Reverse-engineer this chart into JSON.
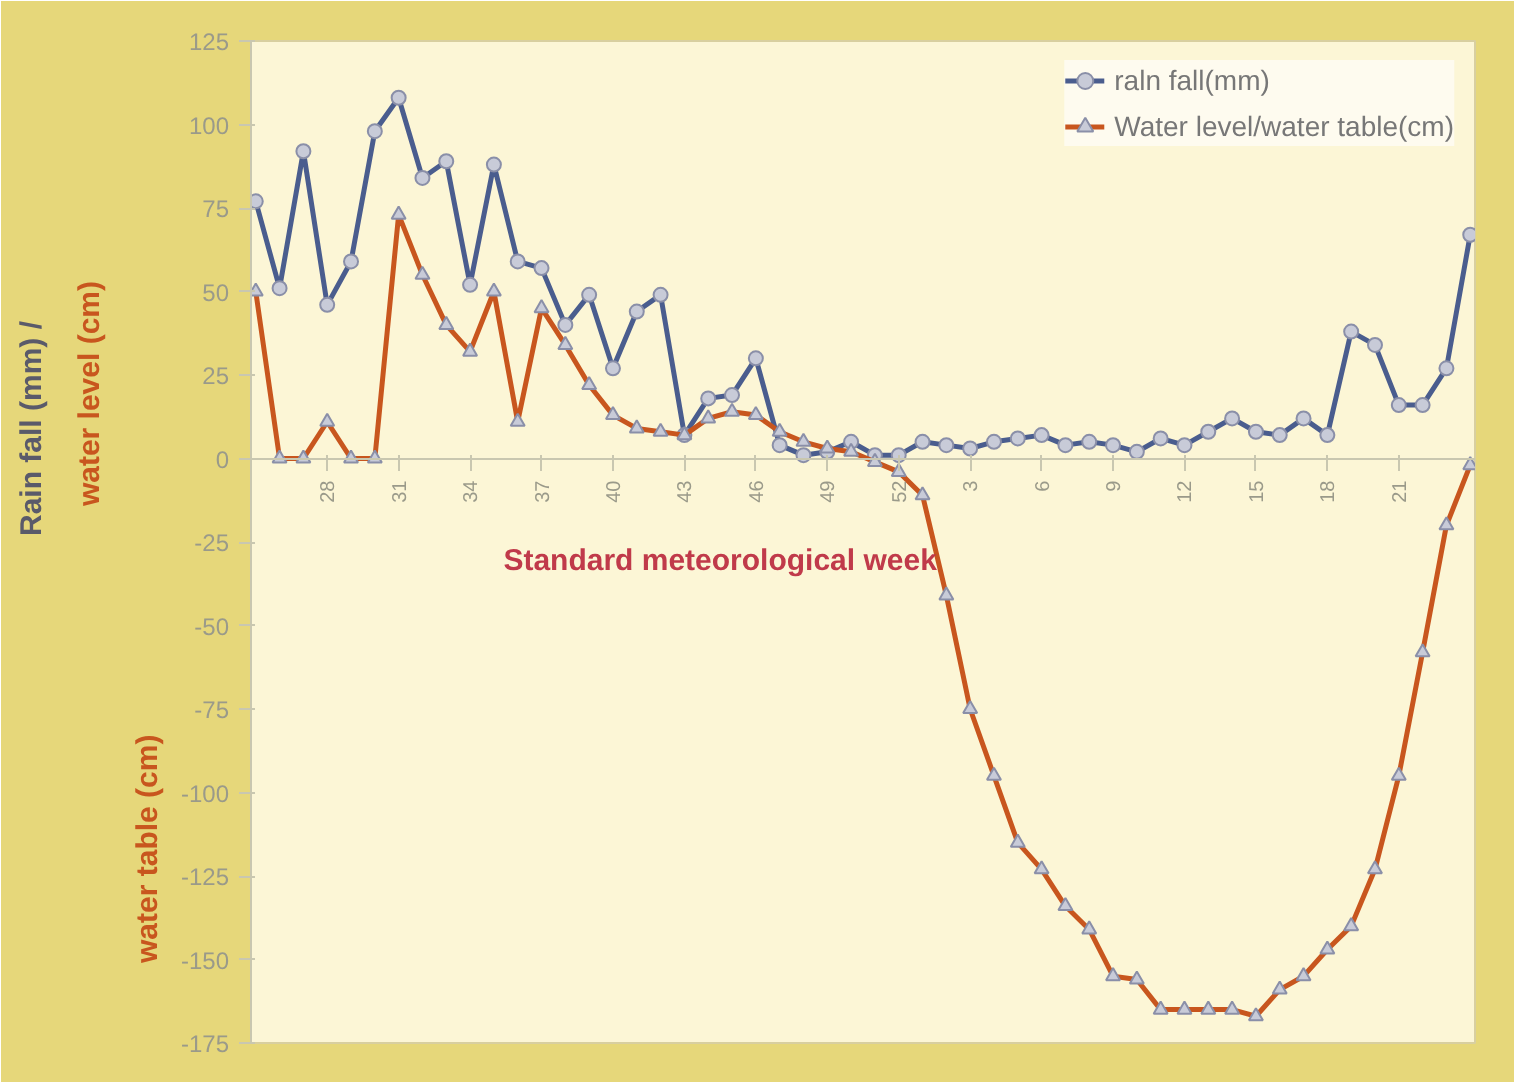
{
  "chart_data": {
    "type": "line",
    "xlabel": "Standard meteorological week",
    "ylabel": "Rain fall (mm) /",
    "annotations": [
      "water level (cm)",
      "water table (cm)"
    ],
    "categories": [
      null,
      null,
      null,
      "28",
      null,
      null,
      "31",
      null,
      null,
      "34",
      null,
      null,
      "37",
      null,
      null,
      "40",
      null,
      null,
      "43",
      null,
      null,
      "46",
      null,
      null,
      "49",
      null,
      null,
      "52",
      null,
      null,
      "3",
      null,
      null,
      "6",
      null,
      null,
      "9",
      null,
      null,
      "12",
      null,
      null,
      "15",
      null,
      null,
      "18",
      null,
      null,
      "21",
      null,
      null,
      null
    ],
    "ylim": [
      -175,
      125
    ],
    "yticks": [
      125,
      100,
      75,
      50,
      25,
      0,
      -25,
      -50,
      -75,
      -100,
      -125,
      -150,
      -175
    ],
    "legend": "top right",
    "series": [
      {
        "name": "raln fall(mm)",
        "color": "#4a5d8e",
        "marker": "circle",
        "values": [
          77,
          51,
          92,
          46,
          59,
          98,
          108,
          84,
          89,
          52,
          88,
          59,
          57,
          40,
          49,
          27,
          44,
          49,
          7,
          18,
          19,
          30,
          4,
          1,
          2,
          5,
          1,
          1,
          5,
          4,
          3,
          5,
          6,
          7,
          4,
          5,
          4,
          2,
          6,
          4,
          8,
          12,
          8,
          7,
          12,
          7,
          38,
          34,
          16,
          16,
          27,
          67
        ]
      },
      {
        "name": "Water level/water table(cm)",
        "color": "#c8561e",
        "marker": "triangle",
        "values": [
          50,
          0,
          0,
          11,
          0,
          0,
          73,
          55,
          40,
          32,
          50,
          11,
          45,
          34,
          22,
          13,
          9,
          8,
          7,
          12,
          14,
          13,
          8,
          5,
          3,
          2,
          -1,
          -4,
          -11,
          -41,
          -75,
          -95,
          -115,
          -123,
          -134,
          -141,
          -155,
          -156,
          -165,
          -165,
          -165,
          -165,
          -167,
          -159,
          -155,
          -147,
          -140,
          -123,
          -95,
          -58,
          -20,
          -2
        ]
      }
    ]
  }
}
